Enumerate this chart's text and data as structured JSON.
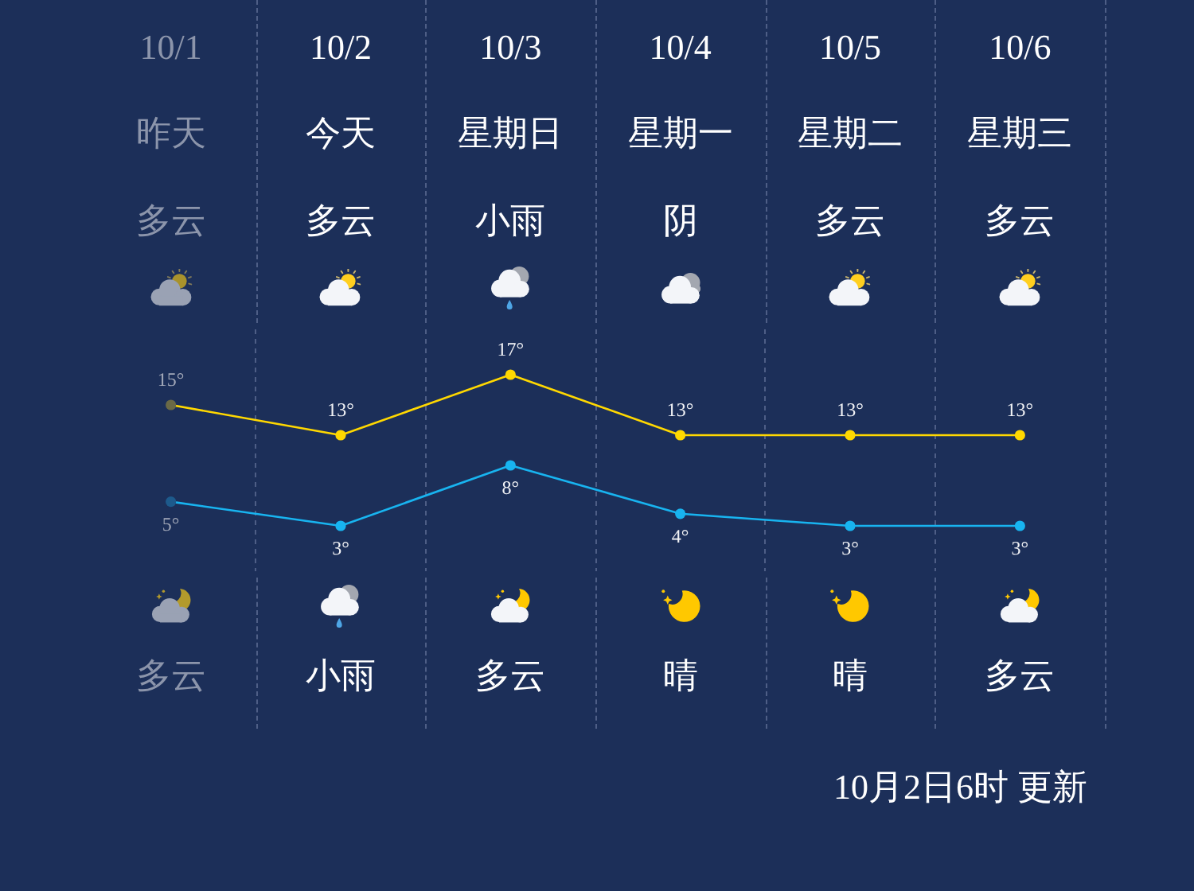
{
  "chart_data": {
    "type": "line",
    "categories": [
      "10/1",
      "10/2",
      "10/3",
      "10/4",
      "10/5",
      "10/6"
    ],
    "series": [
      {
        "color": "#ffd800",
        "colors": [
          "#6a6946",
          "#ffd800",
          "#ffd800",
          "#ffd800",
          "#ffd800",
          "#ffd800"
        ],
        "values": [
          15,
          13,
          17,
          13,
          13,
          13
        ],
        "value_labels": [
          "15°",
          "13°",
          "17°",
          "13°",
          "13°",
          "13°"
        ]
      },
      {
        "color": "#18b4f0",
        "colors": [
          "#1d5a8c",
          "#18b4f0",
          "#18b4f0",
          "#18b4f0",
          "#18b4f0",
          "#18b4f0"
        ],
        "axis": "y2",
        "values": [
          5,
          3,
          8,
          4,
          3,
          3
        ],
        "value_labels": [
          "5°",
          "3°",
          "8°",
          "4°",
          "3°",
          "3°"
        ]
      }
    ],
    "ylim": [
      4,
      20
    ],
    "y2lim": [
      -0.75,
      19.25
    ],
    "annotations": [
      "昨天",
      "今天",
      "星期日",
      "星期一",
      "星期二",
      "星期三",
      "多云",
      "多云",
      "小雨",
      "阴",
      "多云",
      "多云",
      "多云",
      "小雨",
      "多云",
      "晴",
      "晴",
      "多云",
      "10月2日6时 更新"
    ],
    "grid": "x",
    "legend": false,
    "tick_labels": "x",
    "marker": "circle",
    "line_style": "solid"
  }
}
